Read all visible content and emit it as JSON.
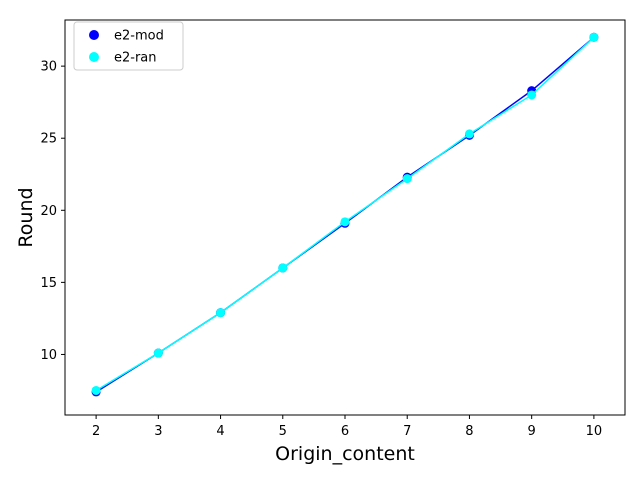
{
  "chart_data": {
    "type": "scatter",
    "xlabel": "Origin_content",
    "ylabel": "Round",
    "xlim": [
      1.5,
      10.5
    ],
    "ylim": [
      5.8,
      33.2
    ],
    "x_ticks": [
      2,
      3,
      4,
      5,
      6,
      7,
      8,
      9,
      10
    ],
    "y_ticks": [
      10,
      15,
      20,
      25,
      30
    ],
    "grid": false,
    "legend_position": "top-left",
    "series": [
      {
        "name": "e2-mod",
        "color": "#0000ff",
        "x": [
          2,
          3,
          4,
          5,
          6,
          7,
          8,
          9,
          10
        ],
        "y": [
          7.4,
          10.1,
          12.9,
          16.0,
          19.1,
          22.3,
          25.2,
          28.3,
          32.0
        ]
      },
      {
        "name": "e2-ran",
        "color": "#00ffff",
        "x": [
          2,
          3,
          4,
          5,
          6,
          7,
          8,
          9,
          10
        ],
        "y": [
          7.5,
          10.1,
          12.9,
          16.0,
          19.2,
          22.2,
          25.3,
          28.0,
          32.0
        ]
      }
    ]
  }
}
